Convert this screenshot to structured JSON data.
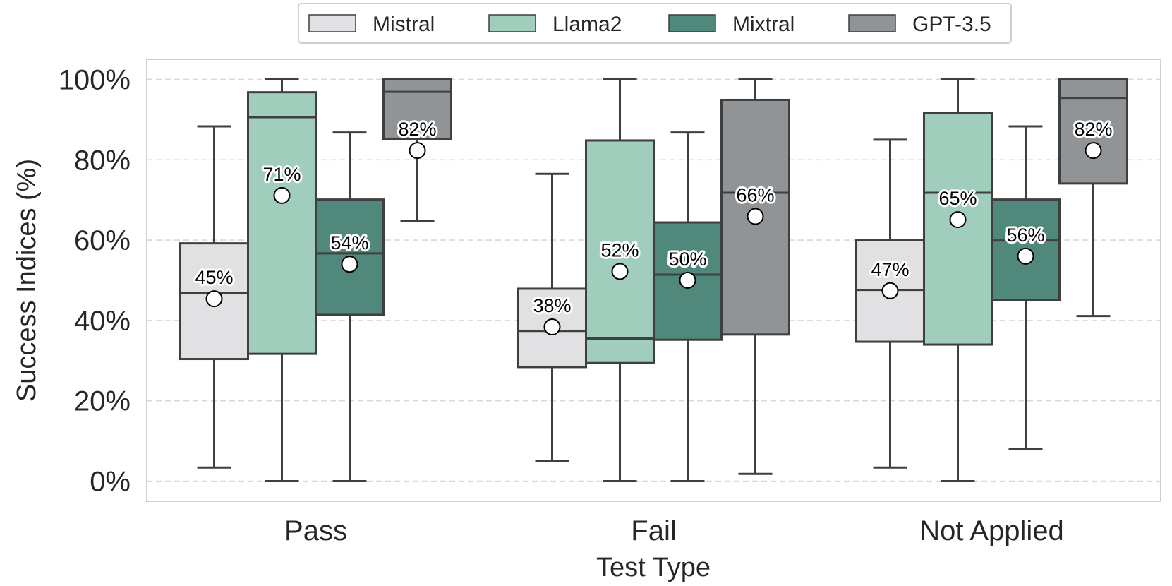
{
  "chart_data": {
    "type": "box",
    "title": "",
    "xlabel": "Test Type",
    "ylabel": "Success Indices (%)",
    "ylim": [
      -5,
      105
    ],
    "y_ticks": [
      0,
      20,
      40,
      60,
      80,
      100
    ],
    "y_tick_labels": [
      "0%",
      "20%",
      "40%",
      "60%",
      "80%",
      "100%"
    ],
    "grid": "horizontal dashed",
    "legend_position": "top-center",
    "categories": [
      "Pass",
      "Fail",
      "Not Applied"
    ],
    "series": [
      {
        "name": "Mistral",
        "color": "#e1e1e3",
        "boxes": [
          {
            "whisker_low": 3.4,
            "q1": 30.4,
            "median": 46.9,
            "q3": 59.2,
            "whisker_high": 88.3,
            "mean": 45.4,
            "mean_label": "45%"
          },
          {
            "whisker_low": 5.0,
            "q1": 28.4,
            "median": 37.4,
            "q3": 47.9,
            "whisker_high": 76.5,
            "mean": 38.4,
            "mean_label": "38%"
          },
          {
            "whisker_low": 3.4,
            "q1": 34.7,
            "median": 47.6,
            "q3": 60.0,
            "whisker_high": 85.0,
            "mean": 47.4,
            "mean_label": "47%"
          }
        ]
      },
      {
        "name": "Llama2",
        "color": "#a0cdbc",
        "boxes": [
          {
            "whisker_low": 0,
            "q1": 31.7,
            "median": 90.6,
            "q3": 96.8,
            "whisker_high": 100,
            "mean": 71.1,
            "mean_label": "71%"
          },
          {
            "whisker_low": 0,
            "q1": 29.4,
            "median": 35.5,
            "q3": 84.8,
            "whisker_high": 100,
            "mean": 52.2,
            "mean_label": "52%"
          },
          {
            "whisker_low": 0,
            "q1": 34.0,
            "median": 71.8,
            "q3": 91.6,
            "whisker_high": 100,
            "mean": 65.1,
            "mean_label": "65%"
          }
        ]
      },
      {
        "name": "Mixtral",
        "color": "#51887c",
        "boxes": [
          {
            "whisker_low": 0,
            "q1": 41.4,
            "median": 56.7,
            "q3": 70.1,
            "whisker_high": 86.8,
            "mean": 54.0,
            "mean_label": "54%"
          },
          {
            "whisker_low": 0,
            "q1": 35.2,
            "median": 51.4,
            "q3": 64.4,
            "whisker_high": 86.8,
            "mean": 50.0,
            "mean_label": "50%"
          },
          {
            "whisker_low": 8.1,
            "q1": 45.0,
            "median": 59.9,
            "q3": 70.1,
            "whisker_high": 88.3,
            "mean": 56.0,
            "mean_label": "56%"
          }
        ]
      },
      {
        "name": "GPT-3.5",
        "color": "#919496",
        "boxes": [
          {
            "whisker_low": 64.8,
            "q1": 85.2,
            "median": 96.9,
            "q3": 100,
            "whisker_high": 100,
            "mean": 82.3,
            "mean_label": "82%"
          },
          {
            "whisker_low": 1.8,
            "q1": 36.5,
            "median": 71.8,
            "q3": 94.9,
            "whisker_high": 100,
            "mean": 65.9,
            "mean_label": "66%"
          },
          {
            "whisker_low": 41.1,
            "q1": 74.1,
            "median": 95.4,
            "q3": 100,
            "whisker_high": 100,
            "mean": 82.3,
            "mean_label": "82%"
          }
        ]
      }
    ]
  }
}
